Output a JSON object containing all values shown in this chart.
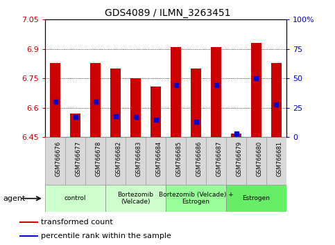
{
  "title": "GDS4089 / ILMN_3263451",
  "samples": [
    "GSM766676",
    "GSM766677",
    "GSM766678",
    "GSM766682",
    "GSM766683",
    "GSM766684",
    "GSM766685",
    "GSM766686",
    "GSM766687",
    "GSM766679",
    "GSM766680",
    "GSM766681"
  ],
  "transformed_count": [
    6.83,
    6.57,
    6.83,
    6.8,
    6.75,
    6.71,
    6.91,
    6.8,
    6.91,
    6.47,
    6.93,
    6.83
  ],
  "percentile_rank": [
    30,
    17,
    30,
    18,
    17,
    15,
    44,
    13,
    44,
    3,
    50,
    28
  ],
  "ylim_left": [
    6.45,
    7.05
  ],
  "ylim_right": [
    0,
    100
  ],
  "yticks_left": [
    6.45,
    6.6,
    6.75,
    6.9,
    7.05
  ],
  "ytick_labels_left": [
    "6.45",
    "6.6",
    "6.75",
    "6.9",
    "7.05"
  ],
  "yticks_right": [
    0,
    25,
    50,
    75,
    100
  ],
  "ytick_labels_right": [
    "0",
    "25",
    "50",
    "75",
    "100%"
  ],
  "groups": [
    {
      "label": "control",
      "start": 0,
      "end": 3,
      "color": "#ccffcc"
    },
    {
      "label": "Bortezomib\n(Velcade)",
      "start": 3,
      "end": 6,
      "color": "#ccffcc"
    },
    {
      "label": "Bortezomib (Velcade) +\nEstrogen",
      "start": 6,
      "end": 9,
      "color": "#99ff99"
    },
    {
      "label": "Estrogen",
      "start": 9,
      "end": 12,
      "color": "#66ee66"
    }
  ],
  "bar_color": "#cc0000",
  "dot_color": "#0000cc",
  "bar_width": 0.5,
  "dot_size": 18,
  "grid_color": "#000000",
  "agent_label": "agent",
  "legend_items": [
    {
      "color": "#cc0000",
      "label": "transformed count"
    },
    {
      "color": "#0000cc",
      "label": "percentile rank within the sample"
    }
  ]
}
